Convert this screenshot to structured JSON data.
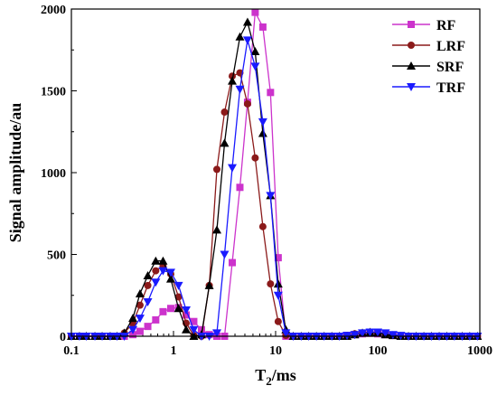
{
  "chart_data": {
    "type": "line",
    "xlabel": "T2/ms",
    "ylabel": "Signal amplitude/au",
    "x_scale": "log",
    "xlim": [
      0.1,
      1000
    ],
    "ylim": [
      0,
      2000
    ],
    "x_ticks": [
      0.1,
      1,
      10,
      100,
      1000
    ],
    "x_tick_labels": [
      "0.1",
      "1",
      "10",
      "100",
      "1000"
    ],
    "y_ticks": [
      0,
      500,
      1000,
      1500,
      2000
    ],
    "y_tick_labels": [
      "0",
      "500",
      "1000",
      "1500",
      "2000"
    ],
    "legend_position": "top-right",
    "grid": false,
    "series": [
      {
        "name": "RF",
        "color": "#cc33cc",
        "marker": "square",
        "x": [
          0.1,
          0.12,
          0.14,
          0.17,
          0.2,
          0.24,
          0.28,
          0.33,
          0.4,
          0.47,
          0.56,
          0.67,
          0.79,
          0.94,
          1.12,
          1.33,
          1.58,
          1.88,
          2.24,
          2.66,
          3.16,
          3.76,
          4.47,
          5.31,
          6.31,
          7.5,
          8.91,
          10.6,
          12.6,
          14.9,
          17.8,
          21.1,
          25.1,
          29.9,
          35.5,
          42.2,
          50.1,
          59.6,
          70.8,
          84.1,
          100,
          119,
          141,
          168,
          200,
          238,
          283,
          336,
          400,
          475,
          564,
          671,
          797,
          947
        ],
        "y": [
          0,
          0,
          0,
          0,
          0,
          0,
          0,
          0,
          10,
          30,
          60,
          100,
          150,
          170,
          175,
          130,
          90,
          40,
          10,
          0,
          0,
          450,
          910,
          1430,
          1980,
          1890,
          1490,
          480,
          0,
          0,
          0,
          0,
          0,
          0,
          0,
          0,
          5,
          10,
          15,
          18,
          15,
          10,
          5,
          0,
          0,
          0,
          0,
          0,
          0,
          0,
          0,
          0,
          0,
          0
        ]
      },
      {
        "name": "LRF",
        "color": "#8b1a1a",
        "marker": "circle",
        "x": [
          0.1,
          0.12,
          0.14,
          0.17,
          0.2,
          0.24,
          0.28,
          0.33,
          0.4,
          0.47,
          0.56,
          0.67,
          0.79,
          0.94,
          1.12,
          1.33,
          1.58,
          1.88,
          2.24,
          2.66,
          3.16,
          3.76,
          4.47,
          5.31,
          6.31,
          7.5,
          8.91,
          10.6,
          12.6,
          14.9,
          17.8,
          21.1,
          25.1,
          29.9,
          35.5,
          42.2,
          50.1,
          59.6,
          70.8,
          84.1,
          100,
          119,
          141,
          168,
          200,
          238,
          283,
          336,
          400,
          475,
          564,
          671,
          797,
          947
        ],
        "y": [
          0,
          0,
          0,
          0,
          0,
          0,
          0,
          20,
          80,
          190,
          310,
          400,
          430,
          380,
          240,
          80,
          5,
          0,
          310,
          1020,
          1370,
          1590,
          1610,
          1420,
          1090,
          670,
          320,
          90,
          5,
          0,
          0,
          0,
          0,
          0,
          0,
          0,
          5,
          15,
          20,
          25,
          20,
          15,
          5,
          0,
          0,
          0,
          0,
          0,
          0,
          0,
          0,
          0,
          0,
          0
        ]
      },
      {
        "name": "SRF",
        "color": "#000000",
        "marker": "triangle-up",
        "x": [
          0.1,
          0.12,
          0.14,
          0.17,
          0.2,
          0.24,
          0.28,
          0.33,
          0.4,
          0.47,
          0.56,
          0.67,
          0.79,
          0.94,
          1.12,
          1.33,
          1.58,
          1.88,
          2.24,
          2.66,
          3.16,
          3.76,
          4.47,
          5.31,
          6.31,
          7.5,
          8.91,
          10.6,
          12.6,
          14.9,
          17.8,
          21.1,
          25.1,
          29.9,
          35.5,
          42.2,
          50.1,
          59.6,
          70.8,
          84.1,
          100,
          119,
          141,
          168,
          200,
          238,
          283,
          336,
          400,
          475,
          564,
          671,
          797,
          947
        ],
        "y": [
          0,
          0,
          0,
          0,
          0,
          0,
          0,
          20,
          110,
          260,
          370,
          460,
          460,
          350,
          170,
          40,
          0,
          10,
          310,
          650,
          1180,
          1560,
          1830,
          1920,
          1740,
          1240,
          860,
          320,
          40,
          0,
          0,
          0,
          0,
          0,
          0,
          0,
          0,
          10,
          20,
          25,
          20,
          10,
          5,
          0,
          0,
          0,
          0,
          0,
          0,
          0,
          0,
          0,
          0,
          0
        ]
      },
      {
        "name": "TRF",
        "color": "#1a1aff",
        "marker": "triangle-down",
        "x": [
          0.1,
          0.12,
          0.14,
          0.17,
          0.2,
          0.24,
          0.28,
          0.33,
          0.4,
          0.47,
          0.56,
          0.67,
          0.79,
          0.94,
          1.12,
          1.33,
          1.58,
          1.88,
          2.24,
          2.66,
          3.16,
          3.76,
          4.47,
          5.31,
          6.31,
          7.5,
          8.91,
          10.6,
          12.6,
          14.9,
          17.8,
          21.1,
          25.1,
          29.9,
          35.5,
          42.2,
          50.1,
          59.6,
          70.8,
          84.1,
          100,
          119,
          141,
          168,
          200,
          238,
          283,
          336,
          400,
          475,
          564,
          671,
          797,
          947
        ],
        "y": [
          0,
          0,
          0,
          0,
          0,
          0,
          0,
          0,
          40,
          110,
          210,
          330,
          400,
          390,
          310,
          160,
          40,
          0,
          0,
          20,
          500,
          1030,
          1510,
          1810,
          1650,
          1310,
          860,
          250,
          20,
          0,
          0,
          0,
          0,
          0,
          0,
          0,
          5,
          10,
          20,
          25,
          25,
          20,
          10,
          5,
          0,
          0,
          0,
          0,
          0,
          0,
          0,
          0,
          0,
          0
        ]
      }
    ]
  }
}
